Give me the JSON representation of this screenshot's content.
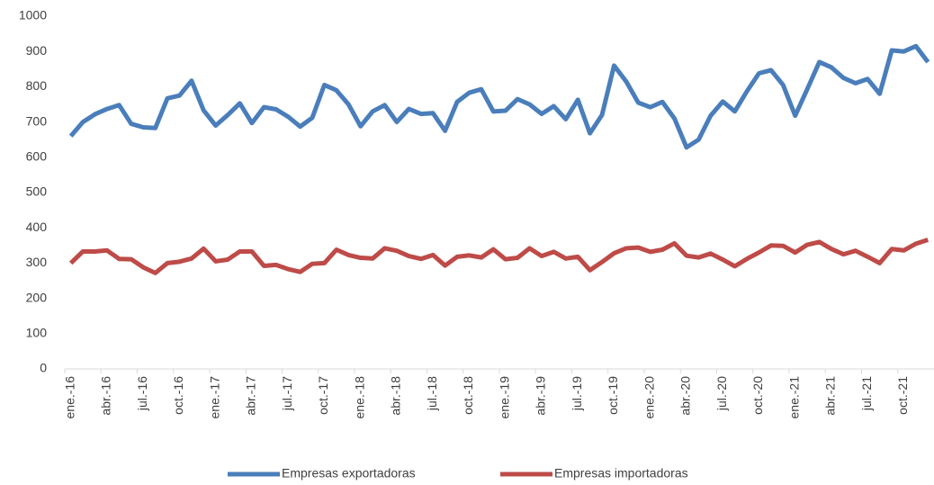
{
  "chart_data": {
    "type": "line",
    "categories": [
      "ene.-16",
      null,
      null,
      "abr.-16",
      null,
      null,
      "jul.-16",
      null,
      null,
      "oct.-16",
      null,
      null,
      "ene.-17",
      null,
      null,
      "abr.-17",
      null,
      null,
      "jul.-17",
      null,
      null,
      "oct.-17",
      null,
      null,
      "ene.-18",
      null,
      null,
      "abr.-18",
      null,
      null,
      "jul.-18",
      null,
      null,
      "oct.-18",
      null,
      null,
      "ene.-19",
      null,
      null,
      "abr.-19",
      null,
      null,
      "jul.-19",
      null,
      null,
      "oct.-19",
      null,
      null,
      "ene.-20",
      null,
      null,
      "abr.-20",
      null,
      null,
      "jul.-20",
      null,
      null,
      "oct.-20",
      null,
      null,
      "ene.-21",
      null,
      null,
      "abr.-21",
      null,
      null,
      "jul.-21",
      null,
      null,
      "oct.-21",
      null,
      null
    ],
    "series": [
      {
        "name": "Empresas exportadoras",
        "color": "#4a7ebb",
        "values": [
          660,
          700,
          722,
          737,
          748,
          695,
          685,
          683,
          767,
          775,
          817,
          733,
          690,
          720,
          753,
          697,
          742,
          736,
          715,
          687,
          712,
          805,
          790,
          750,
          688,
          730,
          748,
          700,
          737,
          723,
          725,
          675,
          757,
          783,
          793,
          730,
          732,
          765,
          750,
          723,
          745,
          708,
          763,
          668,
          720,
          860,
          815,
          755,
          742,
          757,
          710,
          628,
          650,
          718,
          758,
          730,
          787,
          838,
          847,
          805,
          718,
          793,
          870,
          855,
          825,
          810,
          822,
          780,
          903,
          900,
          915,
          870
        ]
      },
      {
        "name": "Empresas importadoras",
        "color": "#be4b48",
        "values": [
          300,
          333,
          333,
          336,
          312,
          311,
          288,
          272,
          300,
          304,
          313,
          341,
          305,
          310,
          333,
          333,
          292,
          295,
          283,
          275,
          298,
          300,
          338,
          323,
          315,
          313,
          342,
          335,
          320,
          312,
          323,
          293,
          318,
          322,
          316,
          339,
          311,
          315,
          342,
          320,
          332,
          313,
          318,
          280,
          303,
          328,
          342,
          344,
          332,
          338,
          356,
          321,
          316,
          327,
          310,
          291,
          312,
          330,
          350,
          349,
          330,
          352,
          360,
          340,
          325,
          335,
          318,
          300,
          340,
          336,
          355,
          366
        ]
      }
    ],
    "ylim": [
      0,
      1000
    ],
    "yticks": [
      0,
      100,
      200,
      300,
      400,
      500,
      600,
      700,
      800,
      900,
      1000
    ],
    "legend": "bottom"
  }
}
